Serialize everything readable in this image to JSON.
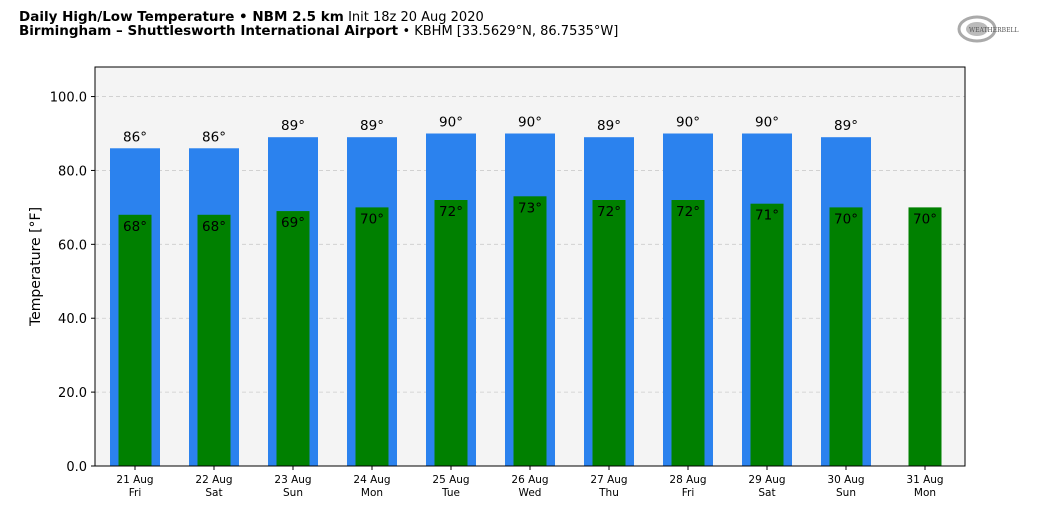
{
  "header": {
    "title_bold": "Daily High/Low Temperature • NBM 2.5 km",
    "title_init": "Init 18z 20 Aug 2020",
    "location_bold": "Birmingham – Shuttlesworth International Airport",
    "location_detail": "• KBHM [33.5629°N, 86.7535°W]",
    "logo_text": "WeatherBELL"
  },
  "chart_data": {
    "type": "bar",
    "title": "Daily High/Low Temperature • NBM 2.5 km",
    "xlabel": "",
    "ylabel": "Temperature [°F]",
    "ylim": [
      0,
      108
    ],
    "yticks": [
      0,
      20,
      40,
      60,
      80,
      100
    ],
    "ytick_labels": [
      "0.0",
      "20.0",
      "40.0",
      "60.0",
      "80.0",
      "100.0"
    ],
    "grid": true,
    "categories": [
      {
        "date": "21 Aug",
        "day": "Fri"
      },
      {
        "date": "22 Aug",
        "day": "Sat"
      },
      {
        "date": "23 Aug",
        "day": "Sun"
      },
      {
        "date": "24 Aug",
        "day": "Mon"
      },
      {
        "date": "25 Aug",
        "day": "Tue"
      },
      {
        "date": "26 Aug",
        "day": "Wed"
      },
      {
        "date": "27 Aug",
        "day": "Thu"
      },
      {
        "date": "28 Aug",
        "day": "Fri"
      },
      {
        "date": "29 Aug",
        "day": "Sat"
      },
      {
        "date": "30 Aug",
        "day": "Sun"
      },
      {
        "date": "31 Aug",
        "day": "Mon"
      }
    ],
    "series": [
      {
        "name": "High",
        "color": "#2b82ee",
        "values": [
          86,
          86,
          89,
          89,
          90,
          90,
          89,
          90,
          90,
          89,
          null
        ]
      },
      {
        "name": "Low",
        "color": "#008000",
        "values": [
          68,
          68,
          69,
          70,
          72,
          73,
          72,
          72,
          71,
          70,
          70
        ]
      }
    ],
    "label_suffix": "°"
  }
}
